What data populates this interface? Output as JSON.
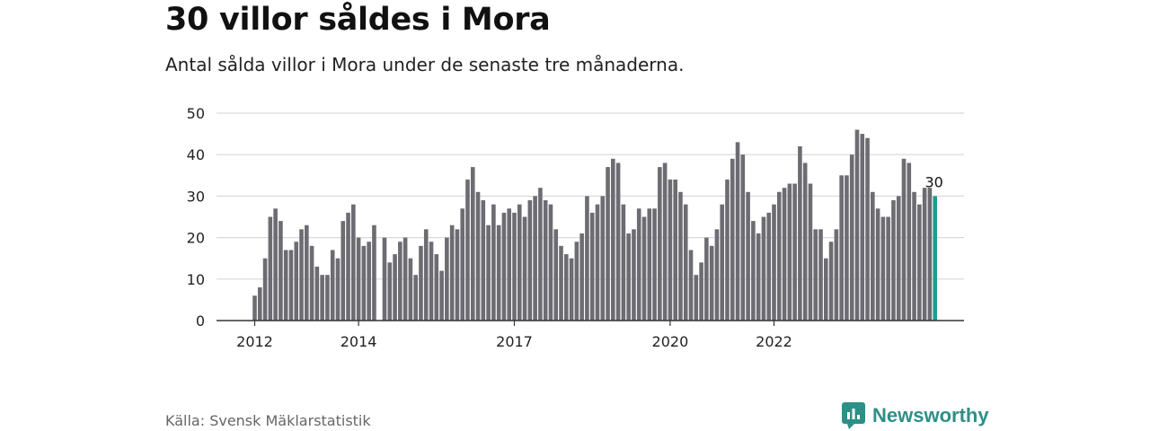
{
  "title": "30 villor såldes i Mora",
  "subtitle": "Antal sålda villor i Mora under de senaste tre månaderna.",
  "source": "Källa: Svensk Mäklarstatistik",
  "brand": {
    "name": "Newsworthy",
    "icon": "newsworthy-logo-icon"
  },
  "colors": {
    "bar": "#6d6c72",
    "highlight": "#1f9b91",
    "grid": "#d9d9d9",
    "axis": "#333333",
    "brand": "#2e8f87"
  },
  "chart_data": {
    "type": "bar",
    "title": "30 villor såldes i Mora",
    "ylim": [
      0,
      50
    ],
    "yticks": [
      "0",
      "10",
      "20",
      "30",
      "40",
      "50"
    ],
    "ytick_values": [
      0,
      10,
      20,
      30,
      40,
      50
    ],
    "xtick_labels": [
      "2012",
      "2014",
      "2017",
      "2020",
      "2022"
    ],
    "xtick_indices": [
      0,
      20,
      50,
      80,
      100
    ],
    "grid": true,
    "legend": "none",
    "highlight_label": "30",
    "series": [
      {
        "values": [
          6,
          8,
          15,
          25,
          27,
          24,
          17,
          17,
          19,
          22,
          23,
          18,
          13,
          11,
          11,
          17,
          15,
          24,
          26,
          28,
          20,
          18,
          19,
          23,
          null,
          20,
          14,
          16,
          19,
          20,
          15,
          11,
          18,
          22,
          19,
          16,
          12,
          20,
          23,
          22,
          27,
          34,
          37,
          31,
          29,
          23,
          28,
          23,
          26,
          27,
          26,
          28,
          25,
          29,
          30,
          32,
          29,
          28,
          22,
          18,
          16,
          15,
          19,
          21,
          30,
          26,
          28,
          30,
          37,
          39,
          38,
          28,
          21,
          22,
          27,
          25,
          27,
          27,
          37,
          38,
          34,
          34,
          31,
          28,
          17,
          11,
          14,
          20,
          18,
          22,
          28,
          34,
          39,
          43,
          40,
          31,
          24,
          21,
          25,
          26,
          28,
          31,
          32,
          33,
          33,
          42,
          38,
          33,
          22,
          22,
          15,
          19,
          22,
          35,
          35,
          40,
          46,
          45,
          44,
          31,
          27,
          25,
          25,
          29,
          30,
          39,
          38,
          31,
          28,
          32,
          32,
          30
        ]
      }
    ]
  }
}
